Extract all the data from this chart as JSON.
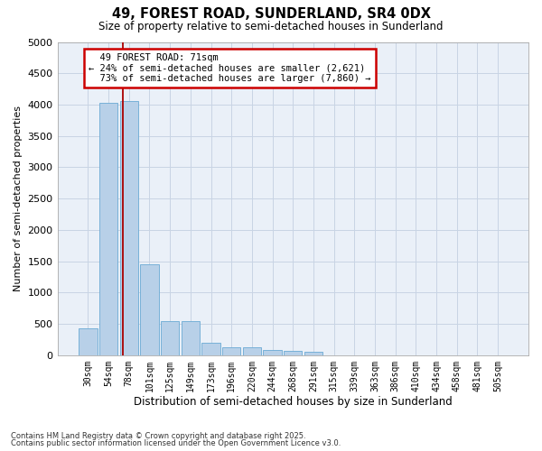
{
  "title": "49, FOREST ROAD, SUNDERLAND, SR4 0DX",
  "subtitle": "Size of property relative to semi-detached houses in Sunderland",
  "xlabel": "Distribution of semi-detached houses by size in Sunderland",
  "ylabel": "Number of semi-detached properties",
  "categories": [
    "30sqm",
    "54sqm",
    "78sqm",
    "101sqm",
    "125sqm",
    "149sqm",
    "173sqm",
    "196sqm",
    "220sqm",
    "244sqm",
    "268sqm",
    "291sqm",
    "315sqm",
    "339sqm",
    "363sqm",
    "386sqm",
    "410sqm",
    "434sqm",
    "458sqm",
    "481sqm",
    "505sqm"
  ],
  "values": [
    430,
    4030,
    4050,
    1450,
    540,
    540,
    200,
    130,
    120,
    90,
    70,
    50,
    0,
    0,
    0,
    0,
    0,
    0,
    0,
    0,
    0
  ],
  "bar_color": "#b8d0e8",
  "bar_edge_color": "#6aaad4",
  "annotation_label": "49 FOREST ROAD: 71sqm",
  "annotation_line_color": "#aa0000",
  "annotation_box_color": "#cc0000",
  "pct_smaller": 24,
  "count_smaller": 2621,
  "pct_larger": 73,
  "count_larger": 7860,
  "ylim": [
    0,
    5000
  ],
  "yticks": [
    0,
    500,
    1000,
    1500,
    2000,
    2500,
    3000,
    3500,
    4000,
    4500,
    5000
  ],
  "footnote1": "Contains HM Land Registry data © Crown copyright and database right 2025.",
  "footnote2": "Contains public sector information licensed under the Open Government Licence v3.0.",
  "background_color": "#ffffff",
  "plot_bg_color": "#eaf0f8",
  "grid_color": "#c8d4e4"
}
